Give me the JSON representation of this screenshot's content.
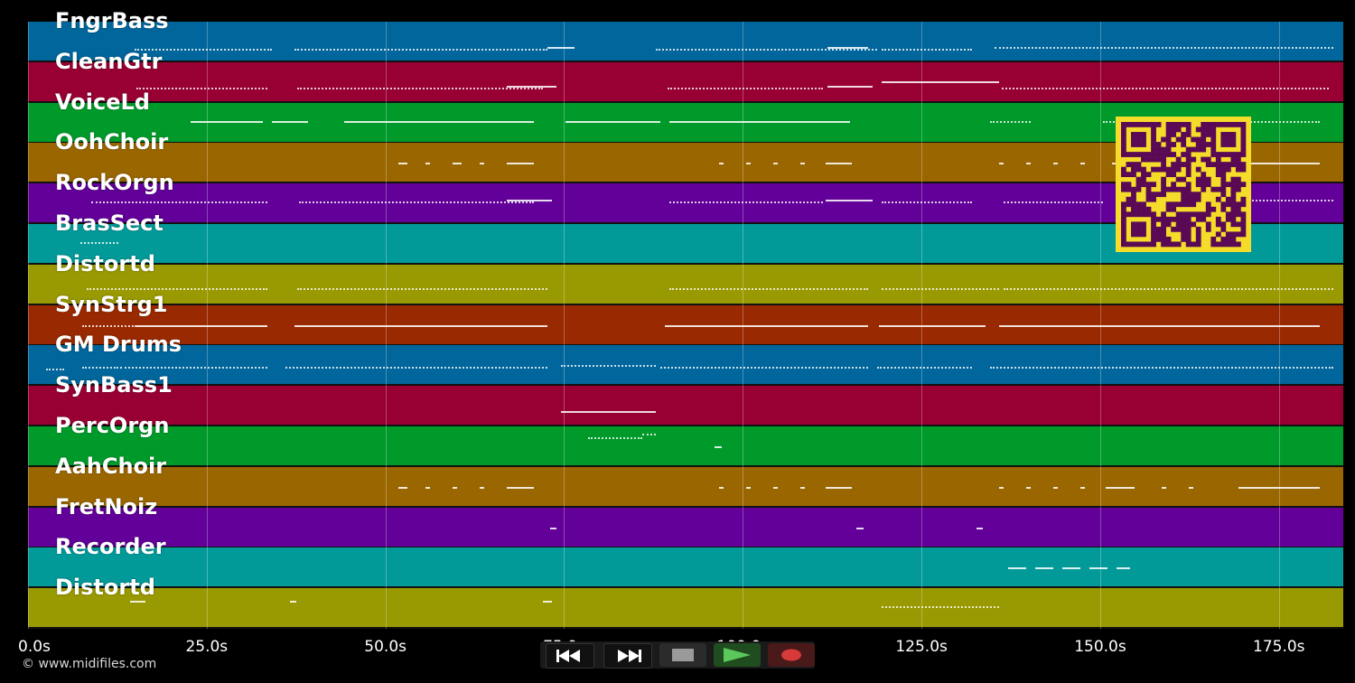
{
  "tracks": [
    {
      "name": "FngrBass",
      "color": "#01669b"
    },
    {
      "name": "CleanGtr",
      "color": "#980033"
    },
    {
      "name": "VoiceLd",
      "color": "#009a2a"
    },
    {
      "name": "OohChoir",
      "color": "#9a6600"
    },
    {
      "name": "RockOrgn",
      "color": "#620099"
    },
    {
      "name": "BrasSect",
      "color": "#029a99"
    },
    {
      "name": "Distortd",
      "color": "#999902"
    },
    {
      "name": "SynStrg1",
      "color": "#992900"
    },
    {
      "name": "GM Drums",
      "color": "#01669b"
    },
    {
      "name": "SynBass1",
      "color": "#980033"
    },
    {
      "name": "PercOrgn",
      "color": "#009a2a"
    },
    {
      "name": "AahChoir",
      "color": "#9a6600"
    },
    {
      "name": "FretNoiz",
      "color": "#620099"
    },
    {
      "name": "Recorder",
      "color": "#029a99"
    },
    {
      "name": "Distortd",
      "color": "#999902"
    }
  ],
  "timeline": {
    "ticks": [
      "0.0s",
      "25.0s",
      "50.0s",
      "75.0s",
      "100.0s",
      "125.0s",
      "150.0s",
      "175.0s"
    ],
    "tick_seconds": [
      0,
      25,
      50,
      75,
      100,
      125,
      150,
      175
    ],
    "end_seconds": 184
  },
  "transport": {
    "rewind_icon": "rewind-icon",
    "fast_forward_icon": "fast-forward-icon",
    "stop_icon": "stop-icon",
    "play_icon": "play-icon",
    "record_icon": "record-icon",
    "play_color": "#5cc85c",
    "record_color": "#d83a3a"
  },
  "copyright": "© www.midifiles.com",
  "qr_code": {
    "color": "#f5dc2a",
    "module_color": "#5a0a55"
  }
}
